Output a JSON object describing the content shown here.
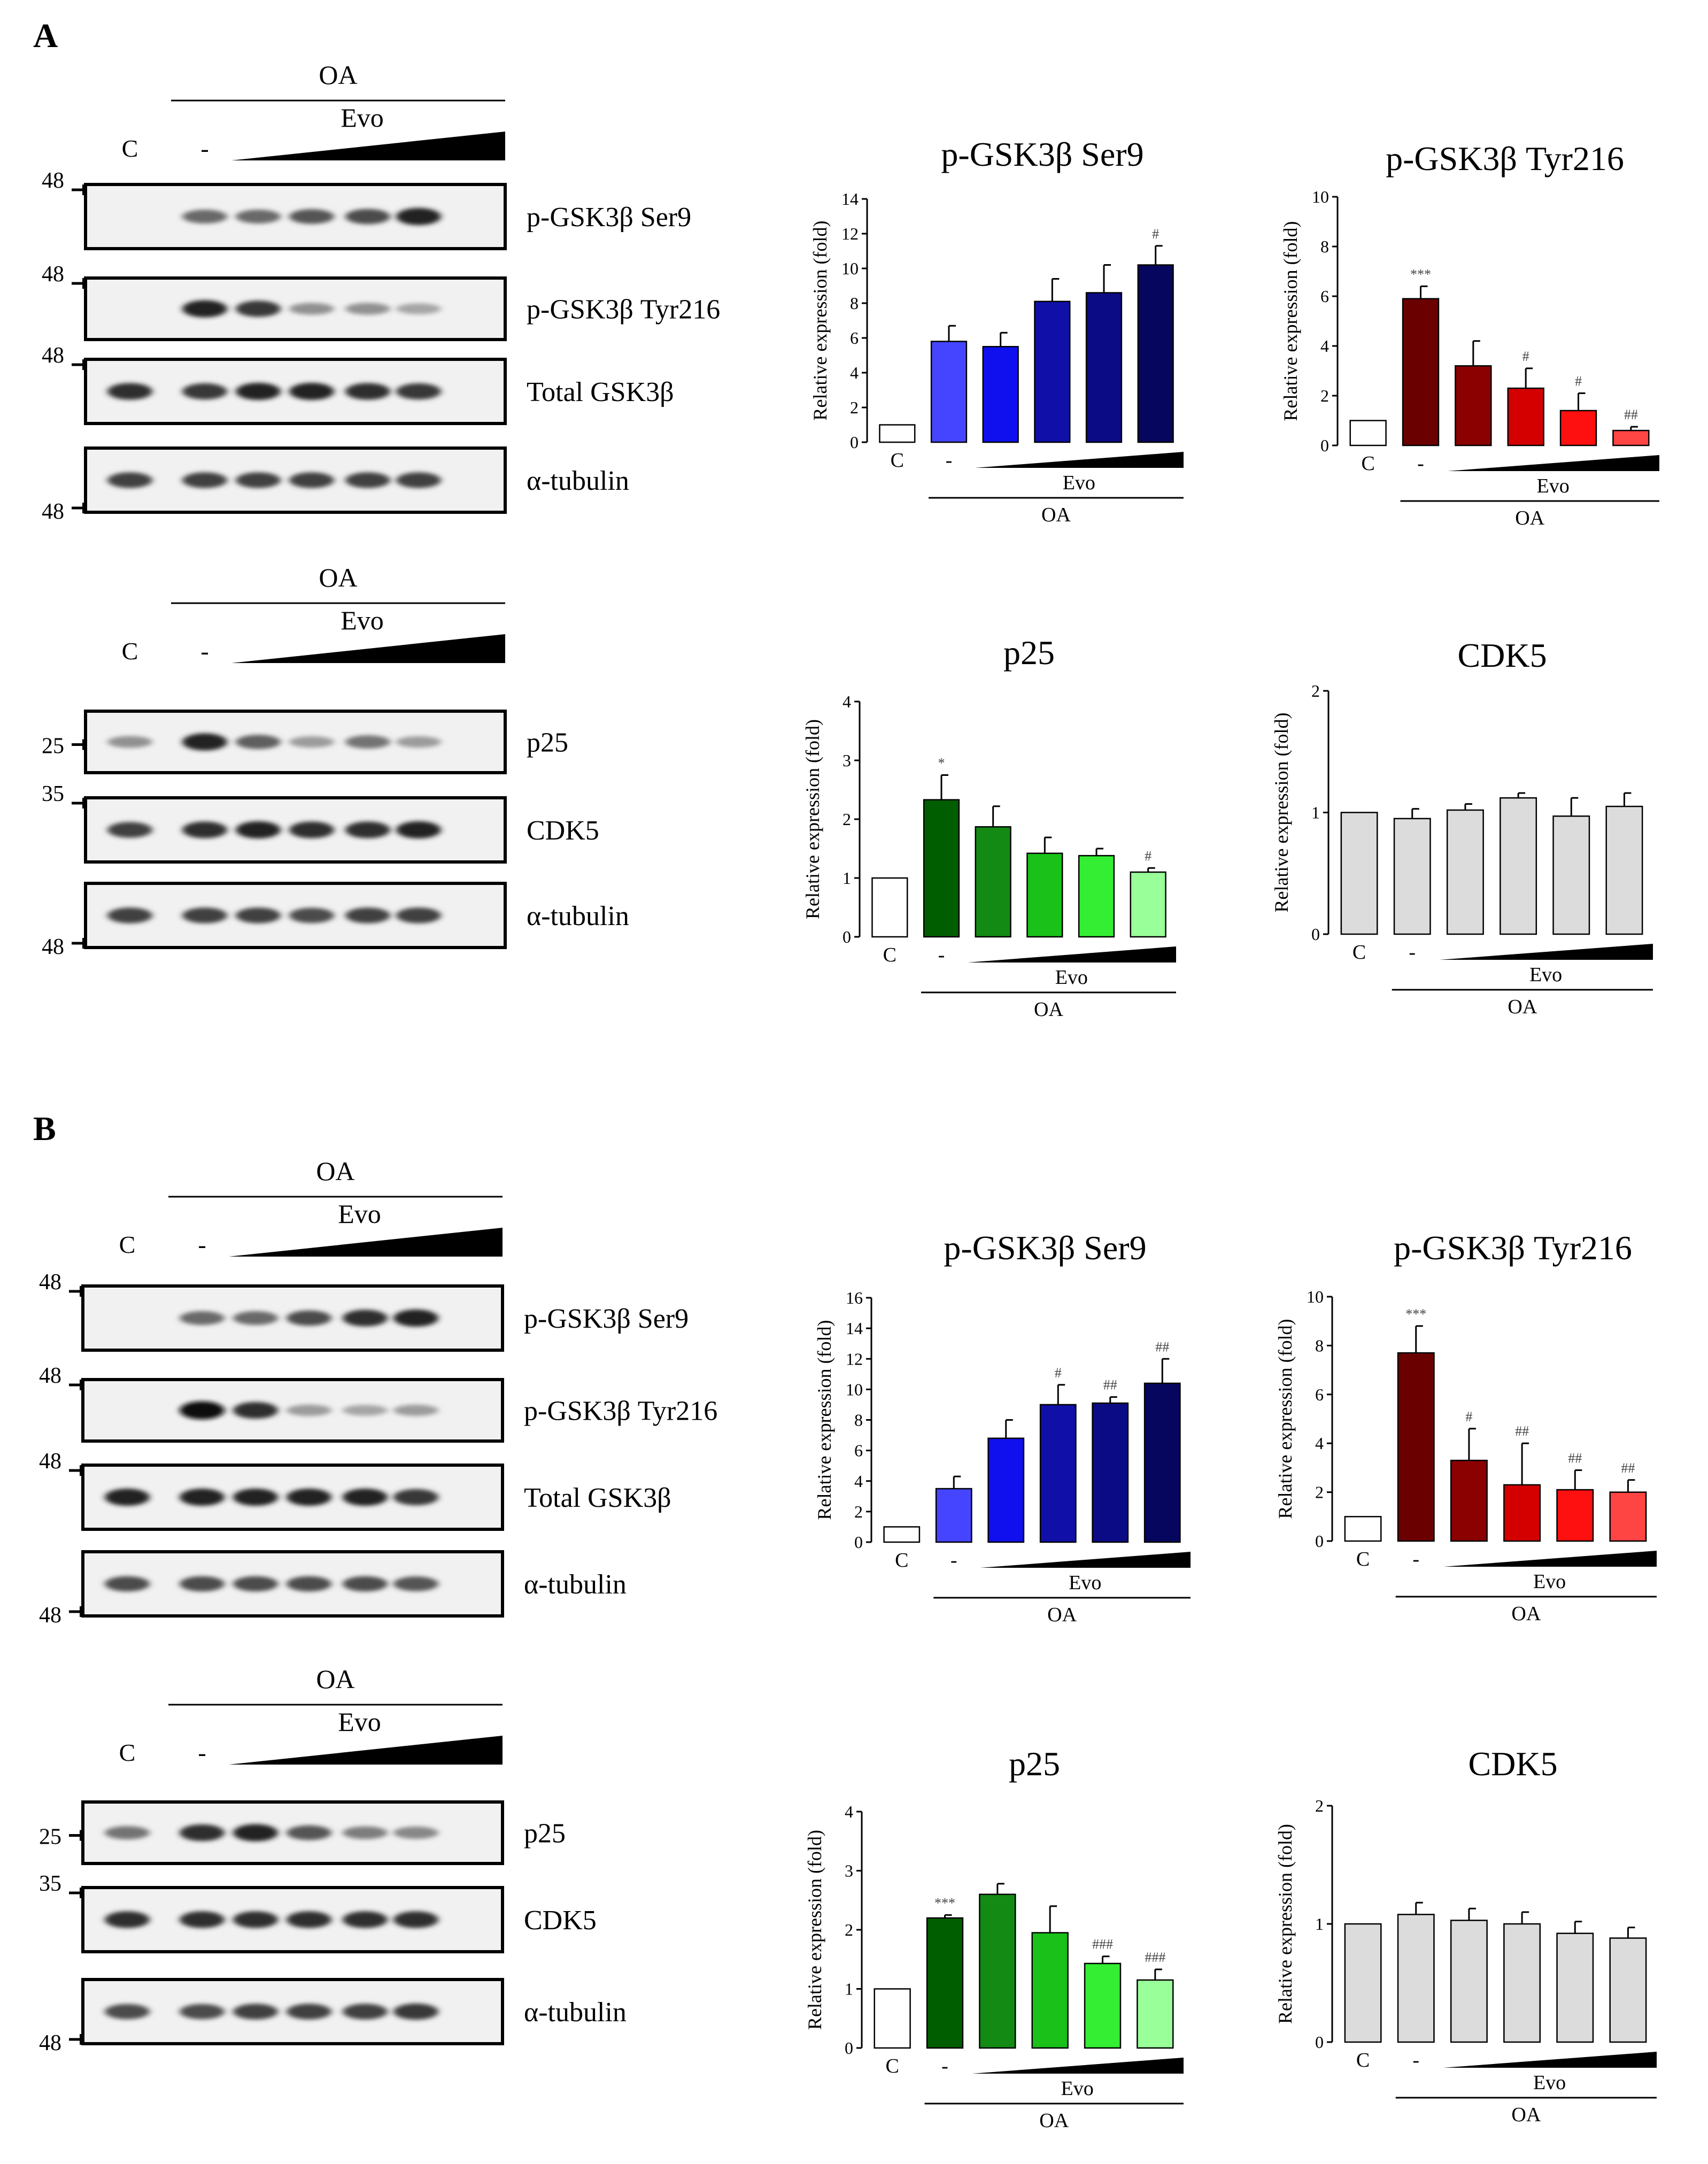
{
  "panels": [
    "A",
    "B"
  ],
  "blots": [
    {
      "panel": "A",
      "group": "gsk",
      "header": {
        "treatment": "OA",
        "compound": "Evo",
        "control_lane": "C",
        "vehicle_lane": "-"
      },
      "rows": [
        {
          "label": "p-GSK3β Ser9",
          "marker": "48",
          "marker_side": "top",
          "intensity": [
            0,
            0.55,
            0.55,
            0.65,
            0.7,
            0.9
          ]
        },
        {
          "label": "p-GSK3β Tyr216",
          "marker": "48",
          "marker_side": "top",
          "intensity": [
            0,
            0.9,
            0.8,
            0.35,
            0.35,
            0.25
          ]
        },
        {
          "label": "Total GSK3β",
          "marker": "48",
          "marker_side": "top",
          "intensity": [
            0.85,
            0.8,
            0.9,
            0.9,
            0.85,
            0.8
          ]
        },
        {
          "label": "α-tubulin",
          "marker": "48",
          "marker_side": "bottom",
          "intensity": [
            0.75,
            0.75,
            0.75,
            0.75,
            0.75,
            0.75
          ]
        }
      ]
    },
    {
      "panel": "A",
      "group": "p25",
      "header": {
        "treatment": "OA",
        "compound": "Evo",
        "control_lane": "C",
        "vehicle_lane": "-"
      },
      "rows": [
        {
          "label": "p25",
          "marker": "25",
          "marker_side": "mid",
          "intensity": [
            0.35,
            0.9,
            0.6,
            0.3,
            0.5,
            0.3
          ]
        },
        {
          "label": "CDK5",
          "marker": "35",
          "marker_side": "top",
          "intensity": [
            0.75,
            0.85,
            0.9,
            0.85,
            0.85,
            0.9
          ]
        },
        {
          "label": "α-tubulin",
          "marker": "48",
          "marker_side": "bottom",
          "intensity": [
            0.75,
            0.75,
            0.75,
            0.7,
            0.75,
            0.75
          ]
        }
      ]
    },
    {
      "panel": "B",
      "group": "gsk",
      "header": {
        "treatment": "OA",
        "compound": "Evo",
        "control_lane": "C",
        "vehicle_lane": "-"
      },
      "rows": [
        {
          "label": "p-GSK3β Ser9",
          "marker": "48",
          "marker_side": "top",
          "intensity": [
            0,
            0.55,
            0.55,
            0.7,
            0.85,
            0.9
          ]
        },
        {
          "label": "p-GSK3β Tyr216",
          "marker": "48",
          "marker_side": "top",
          "intensity": [
            0,
            1.0,
            0.85,
            0.3,
            0.25,
            0.3
          ]
        },
        {
          "label": "Total GSK3β",
          "marker": "48",
          "marker_side": "top",
          "intensity": [
            0.9,
            0.9,
            0.9,
            0.9,
            0.9,
            0.8
          ]
        },
        {
          "label": "α-tubulin",
          "marker": "48",
          "marker_side": "bottom",
          "intensity": [
            0.7,
            0.7,
            0.7,
            0.7,
            0.7,
            0.65
          ]
        }
      ]
    },
    {
      "panel": "B",
      "group": "p25",
      "header": {
        "treatment": "OA",
        "compound": "Evo",
        "control_lane": "C",
        "vehicle_lane": "-"
      },
      "rows": [
        {
          "label": "p25",
          "marker": "25",
          "marker_side": "mid",
          "intensity": [
            0.5,
            0.85,
            0.9,
            0.65,
            0.45,
            0.4
          ]
        },
        {
          "label": "CDK5",
          "marker": "35",
          "marker_side": "top",
          "intensity": [
            0.85,
            0.85,
            0.85,
            0.85,
            0.85,
            0.85
          ]
        },
        {
          "label": "α-tubulin",
          "marker": "48",
          "marker_side": "bottom",
          "intensity": [
            0.7,
            0.7,
            0.75,
            0.75,
            0.75,
            0.8
          ]
        }
      ]
    }
  ],
  "chart_data": [
    {
      "panel": "A",
      "type": "bar",
      "title": "p-GSK3β Ser9",
      "ylabel": "Relative expression (fold)",
      "categories": [
        "C",
        "-",
        "Evo 1",
        "Evo 2",
        "Evo 3",
        "Evo 4"
      ],
      "cat_labels": [
        "C",
        "-"
      ],
      "values": [
        1.0,
        5.8,
        5.5,
        8.1,
        8.6,
        10.2
      ],
      "errors": [
        0,
        0.9,
        0.8,
        1.3,
        1.6,
        1.1
      ],
      "annotations": [
        "",
        "",
        "",
        "",
        "",
        "#"
      ],
      "ylim": [
        0,
        14
      ],
      "yticks": [
        0,
        2,
        4,
        6,
        8,
        10,
        12,
        14
      ],
      "colors": [
        "#ffffff",
        "#4545ff",
        "#1010ee",
        "#1010a8",
        "#0b0b86",
        "#06065e"
      ],
      "xlabel_compound": "Evo",
      "xlabel_treatment": "OA"
    },
    {
      "panel": "A",
      "type": "bar",
      "title": "p-GSK3β Tyr216",
      "ylabel": "Relative expression (fold)",
      "categories": [
        "C",
        "-",
        "Evo 1",
        "Evo 2",
        "Evo 3",
        "Evo 4"
      ],
      "cat_labels": [
        "C",
        "-"
      ],
      "values": [
        1.0,
        5.9,
        3.2,
        2.3,
        1.4,
        0.6
      ],
      "errors": [
        0,
        0.5,
        1.0,
        0.8,
        0.7,
        0.15
      ],
      "annotations": [
        "",
        "***",
        "",
        "#",
        "#",
        "##"
      ],
      "ylim": [
        0,
        10
      ],
      "yticks": [
        0,
        2,
        4,
        6,
        8,
        10
      ],
      "colors": [
        "#ffffff",
        "#6b0000",
        "#8b0000",
        "#d40000",
        "#ff1010",
        "#ff4444"
      ],
      "xlabel_compound": "Evo",
      "xlabel_treatment": "OA"
    },
    {
      "panel": "A",
      "type": "bar",
      "title": "p25",
      "ylabel": "Relative expression (fold)",
      "categories": [
        "C",
        "-",
        "Evo 1",
        "Evo 2",
        "Evo 3",
        "Evo 4"
      ],
      "cat_labels": [
        "C",
        "-"
      ],
      "values": [
        1.0,
        2.33,
        1.87,
        1.42,
        1.38,
        1.1
      ],
      "errors": [
        0,
        0.42,
        0.35,
        0.27,
        0.12,
        0.07
      ],
      "annotations": [
        "",
        "*",
        "",
        "",
        "",
        "#"
      ],
      "ylim": [
        0,
        4
      ],
      "yticks": [
        0,
        1,
        2,
        3,
        4
      ],
      "colors": [
        "#ffffff",
        "#005e00",
        "#138a13",
        "#19c119",
        "#33ee33",
        "#99ff99"
      ],
      "xlabel_compound": "Evo",
      "xlabel_treatment": "OA"
    },
    {
      "panel": "A",
      "type": "bar",
      "title": "CDK5",
      "ylabel": "Relative expression (fold)",
      "categories": [
        "C",
        "-",
        "Evo 1",
        "Evo 2",
        "Evo 3",
        "Evo 4"
      ],
      "cat_labels": [
        "C",
        "-"
      ],
      "values": [
        1.0,
        0.95,
        1.02,
        1.12,
        0.97,
        1.05
      ],
      "errors": [
        0,
        0.08,
        0.05,
        0.04,
        0.15,
        0.11
      ],
      "annotations": [
        "",
        "",
        "",
        "",
        "",
        ""
      ],
      "ylim": [
        0,
        2
      ],
      "yticks": [
        0,
        1,
        2
      ],
      "colors": [
        "#dcdcdc",
        "#dcdcdc",
        "#dcdcdc",
        "#dcdcdc",
        "#dcdcdc",
        "#dcdcdc"
      ],
      "xlabel_compound": "Evo",
      "xlabel_treatment": "OA"
    },
    {
      "panel": "B",
      "type": "bar",
      "title": "p-GSK3β Ser9",
      "ylabel": "Relative expression (fold)",
      "categories": [
        "C",
        "-",
        "Evo 1",
        "Evo 2",
        "Evo 3",
        "Evo 4"
      ],
      "cat_labels": [
        "C",
        "-"
      ],
      "values": [
        1.0,
        3.5,
        6.8,
        9.0,
        9.1,
        10.4
      ],
      "errors": [
        0,
        0.8,
        1.2,
        1.3,
        0.4,
        1.6
      ],
      "annotations": [
        "",
        "",
        "",
        "#",
        "##",
        "##"
      ],
      "ylim": [
        0,
        16
      ],
      "yticks": [
        0,
        2,
        4,
        6,
        8,
        10,
        12,
        14,
        16
      ],
      "colors": [
        "#ffffff",
        "#4545ff",
        "#1010ee",
        "#1010a8",
        "#0b0b86",
        "#06065e"
      ],
      "xlabel_compound": "Evo",
      "xlabel_treatment": "OA"
    },
    {
      "panel": "B",
      "type": "bar",
      "title": "p-GSK3β Tyr216",
      "ylabel": "Relative expression (fold)",
      "categories": [
        "C",
        "-",
        "Evo 1",
        "Evo 2",
        "Evo 3",
        "Evo 4"
      ],
      "cat_labels": [
        "C",
        "-"
      ],
      "values": [
        1.0,
        7.7,
        3.3,
        2.3,
        2.1,
        2.0
      ],
      "errors": [
        0,
        1.1,
        1.3,
        1.7,
        0.8,
        0.5
      ],
      "annotations": [
        "",
        "***",
        "#",
        "##",
        "##",
        "##"
      ],
      "ylim": [
        0,
        10
      ],
      "yticks": [
        0,
        2,
        4,
        6,
        8,
        10
      ],
      "colors": [
        "#ffffff",
        "#6b0000",
        "#8b0000",
        "#d40000",
        "#ff1010",
        "#ff4444"
      ],
      "xlabel_compound": "Evo",
      "xlabel_treatment": "OA"
    },
    {
      "panel": "B",
      "type": "bar",
      "title": "p25",
      "ylabel": "Relative expression (fold)",
      "categories": [
        "C",
        "-",
        "Evo 1",
        "Evo 2",
        "Evo 3",
        "Evo 4"
      ],
      "cat_labels": [
        "C",
        "-"
      ],
      "values": [
        1.0,
        2.2,
        2.6,
        1.95,
        1.43,
        1.15
      ],
      "errors": [
        0,
        0.05,
        0.18,
        0.45,
        0.12,
        0.18
      ],
      "annotations": [
        "",
        "***",
        "",
        "",
        "###",
        "###"
      ],
      "ylim": [
        0,
        4
      ],
      "yticks": [
        0,
        1,
        2,
        3,
        4
      ],
      "colors": [
        "#ffffff",
        "#005e00",
        "#138a13",
        "#19c119",
        "#33ee33",
        "#99ff99"
      ],
      "xlabel_compound": "Evo",
      "xlabel_treatment": "OA"
    },
    {
      "panel": "B",
      "type": "bar",
      "title": "CDK5",
      "ylabel": "Relative expression (fold)",
      "categories": [
        "C",
        "-",
        "Evo 1",
        "Evo 2",
        "Evo 3",
        "Evo 4"
      ],
      "cat_labels": [
        "C",
        "-"
      ],
      "values": [
        1.0,
        1.08,
        1.03,
        1.0,
        0.92,
        0.88
      ],
      "errors": [
        0,
        0.1,
        0.1,
        0.1,
        0.1,
        0.09
      ],
      "annotations": [
        "",
        "",
        "",
        "",
        "",
        ""
      ],
      "ylim": [
        0,
        2
      ],
      "yticks": [
        0,
        1,
        2
      ],
      "colors": [
        "#dcdcdc",
        "#dcdcdc",
        "#dcdcdc",
        "#dcdcdc",
        "#dcdcdc",
        "#dcdcdc"
      ],
      "xlabel_compound": "Evo",
      "xlabel_treatment": "OA"
    }
  ]
}
